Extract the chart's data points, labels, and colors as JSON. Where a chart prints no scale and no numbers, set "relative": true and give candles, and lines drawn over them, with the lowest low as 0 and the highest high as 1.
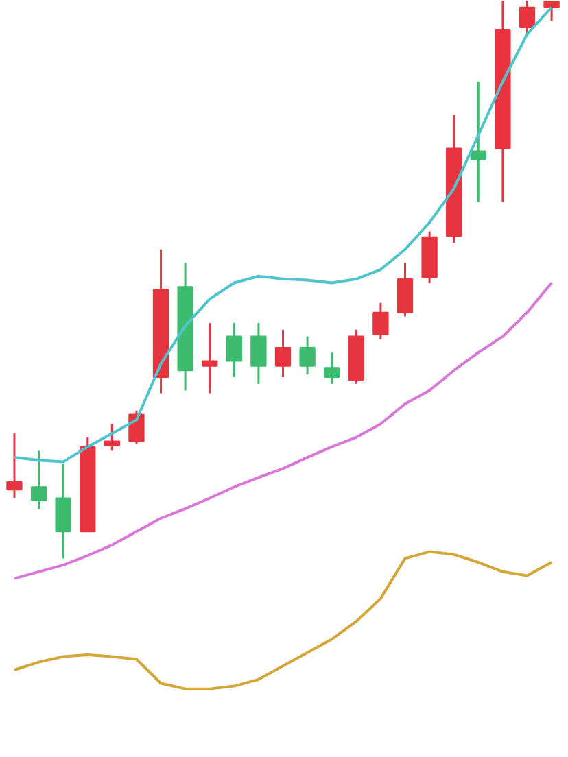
{
  "chart_data": {
    "type": "candlestick",
    "relative": true,
    "categories": [
      null,
      null,
      null,
      null,
      null,
      null,
      null,
      null,
      null,
      null,
      null,
      null,
      null,
      null,
      null,
      null,
      null,
      null,
      null,
      null,
      null,
      null,
      null
    ],
    "ohlc": [
      [
        0.123,
        0.224,
        0.108,
        0.137
      ],
      [
        0.128,
        0.193,
        0.089,
        0.104
      ],
      [
        0.108,
        0.169,
        0.0,
        0.048
      ],
      [
        0.048,
        0.217,
        0.048,
        0.2
      ],
      [
        0.202,
        0.241,
        0.193,
        0.21
      ],
      [
        0.21,
        0.265,
        0.205,
        0.258
      ],
      [
        0.325,
        0.554,
        0.296,
        0.482
      ],
      [
        0.487,
        0.53,
        0.301,
        0.337
      ],
      [
        0.345,
        0.422,
        0.296,
        0.354
      ],
      [
        0.398,
        0.422,
        0.325,
        0.354
      ],
      [
        0.398,
        0.422,
        0.313,
        0.345
      ],
      [
        0.345,
        0.41,
        0.325,
        0.378
      ],
      [
        0.378,
        0.398,
        0.33,
        0.345
      ],
      [
        0.342,
        0.369,
        0.313,
        0.325
      ],
      [
        0.32,
        0.41,
        0.313,
        0.398
      ],
      [
        0.402,
        0.458,
        0.393,
        0.441
      ],
      [
        0.441,
        0.53,
        0.434,
        0.501
      ],
      [
        0.504,
        0.586,
        0.494,
        0.576
      ],
      [
        0.578,
        0.795,
        0.566,
        0.735
      ],
      [
        0.73,
        0.855,
        0.639,
        0.716
      ],
      [
        0.735,
        1.0,
        0.639,
        0.947
      ],
      [
        0.952,
        1.0,
        0.94,
        0.988
      ],
      [
        0.988,
        1.0,
        0.964,
        1.0
      ]
    ],
    "colors": [
      "#e8343f",
      "#3dbb6f",
      "#3dbb6f",
      "#e8343f",
      "#e8343f",
      "#e8343f",
      "#e8343f",
      "#3dbb6f",
      "#e8343f",
      "#3dbb6f",
      "#3dbb6f",
      "#e8343f",
      "#3dbb6f",
      "#3dbb6f",
      "#e8343f",
      "#e8343f",
      "#e8343f",
      "#e8343f",
      "#e8343f",
      "#3dbb6f",
      "#e8343f",
      "#e8343f",
      "#e8343f"
    ],
    "series": [
      {
        "type": "line",
        "color": "#4fc4cc",
        "values": [
          0.181,
          0.176,
          0.173,
          0.2,
          0.224,
          0.248,
          0.349,
          0.417,
          0.465,
          0.494,
          0.506,
          0.501,
          0.499,
          0.494,
          0.501,
          0.518,
          0.554,
          0.602,
          0.663,
          0.759,
          0.855,
          0.94,
          0.988
        ]
      },
      {
        "type": "line",
        "color": "#d877d8",
        "values": [
          -0.036,
          -0.024,
          -0.012,
          0.005,
          0.024,
          0.048,
          0.072,
          0.089,
          0.108,
          0.128,
          0.145,
          0.161,
          0.181,
          0.2,
          0.217,
          0.241,
          0.277,
          0.301,
          0.337,
          0.369,
          0.398,
          0.441,
          0.494
        ]
      },
      {
        "type": "line",
        "color": "#d4a537",
        "values": [
          -0.2,
          -0.186,
          -0.176,
          -0.173,
          -0.176,
          -0.181,
          -0.224,
          -0.234,
          -0.234,
          -0.229,
          -0.217,
          -0.193,
          -0.169,
          -0.145,
          -0.113,
          -0.072,
          0.0,
          0.012,
          0.007,
          -0.007,
          -0.024,
          -0.031,
          -0.007
        ]
      }
    ]
  }
}
